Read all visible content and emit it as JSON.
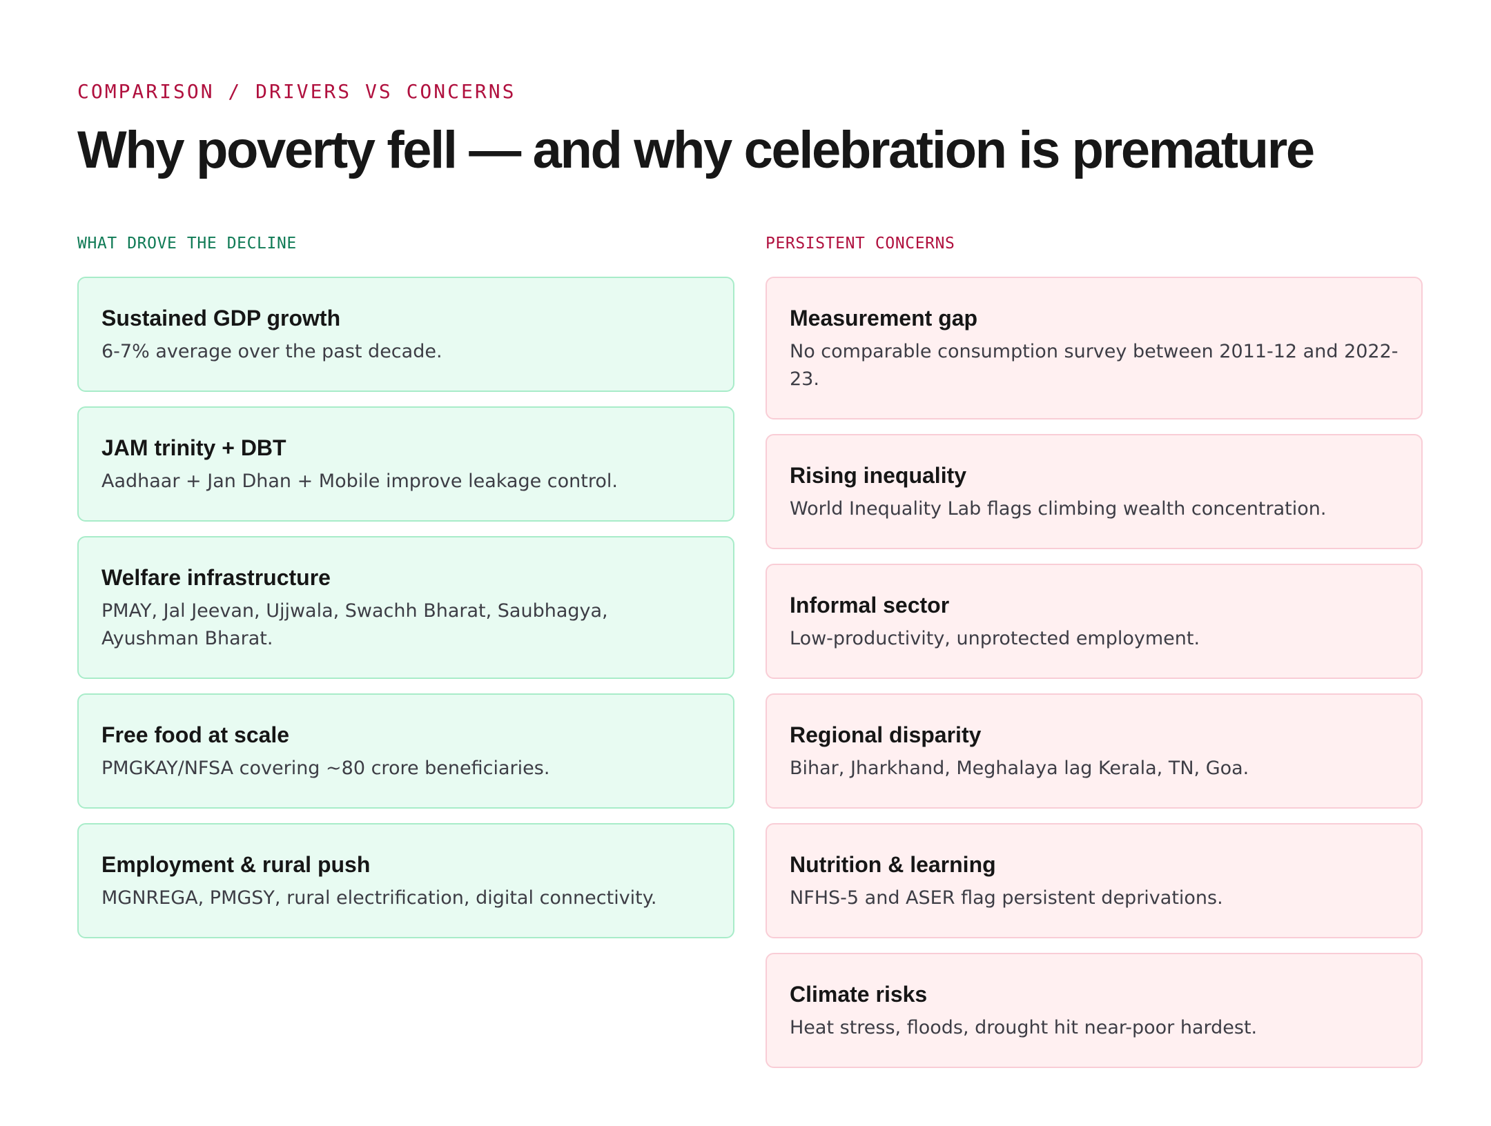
{
  "header": {
    "eyebrow": "COMPARISON / DRIVERS VS CONCERNS",
    "title": "Why poverty fell — and why celebration is premature"
  },
  "drivers": {
    "label": "WHAT DROVE THE DECLINE",
    "items": [
      {
        "title": "Sustained GDP growth",
        "desc": "6-7% average over the past decade."
      },
      {
        "title": "JAM trinity + DBT",
        "desc": "Aadhaar + Jan Dhan + Mobile improve leakage control."
      },
      {
        "title": "Welfare infrastructure",
        "desc": "PMAY, Jal Jeevan, Ujjwala, Swachh Bharat, Saubhagya, Ayushman Bharat."
      },
      {
        "title": "Free food at scale",
        "desc": "PMGKAY/NFSA covering ~80 crore beneficiaries."
      },
      {
        "title": "Employment & rural push",
        "desc": "MGNREGA, PMGSY, rural electrification, digital connectivity."
      }
    ]
  },
  "concerns": {
    "label": "PERSISTENT CONCERNS",
    "items": [
      {
        "title": "Measurement gap",
        "desc": "No comparable consumption survey between 2011-12 and 2022-23."
      },
      {
        "title": "Rising inequality",
        "desc": "World Inequality Lab flags climbing wealth concentration."
      },
      {
        "title": "Informal sector",
        "desc": "Low-productivity, unprotected employment."
      },
      {
        "title": "Regional disparity",
        "desc": "Bihar, Jharkhand, Meghalaya lag Kerala, TN, Goa."
      },
      {
        "title": "Nutrition & learning",
        "desc": "NFHS-5 and ASER flag persistent deprivations."
      },
      {
        "title": "Climate risks",
        "desc": "Heat stress, floods, drought hit near-poor hardest."
      }
    ]
  },
  "colors": {
    "accent_red": "#b0103e",
    "accent_green": "#0f7a55",
    "green_card_bg": "#e8fbf2",
    "green_card_border": "#a8ecc9",
    "red_card_bg": "#fff0f1",
    "red_card_border": "#f9cdd6"
  }
}
